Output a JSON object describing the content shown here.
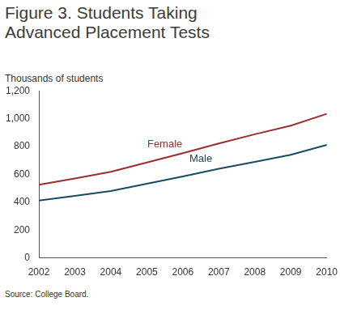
{
  "chart_data": {
    "type": "line",
    "title": "Figure 3. Students Taking Advanced Placement Tests",
    "subtitle": "Thousands of students",
    "source": "Source: College Board.",
    "categories": [
      "2002",
      "2003",
      "2004",
      "2005",
      "2006",
      "2007",
      "2008",
      "2009",
      "2010"
    ],
    "series": [
      {
        "name": "Female",
        "color": "#9b2d30",
        "values": [
          525,
          570,
          618,
          685,
          752,
          822,
          888,
          950,
          1035
        ]
      },
      {
        "name": "Male",
        "color": "#1a4a63",
        "values": [
          412,
          445,
          480,
          533,
          585,
          640,
          690,
          740,
          812
        ]
      }
    ],
    "ylim": [
      0,
      1200
    ],
    "yticks": [
      0,
      200,
      400,
      600,
      800,
      {
        "value": 1000,
        "label": "1,000"
      },
      {
        "value": 1200,
        "label": "1,200"
      }
    ],
    "grid": false
  }
}
